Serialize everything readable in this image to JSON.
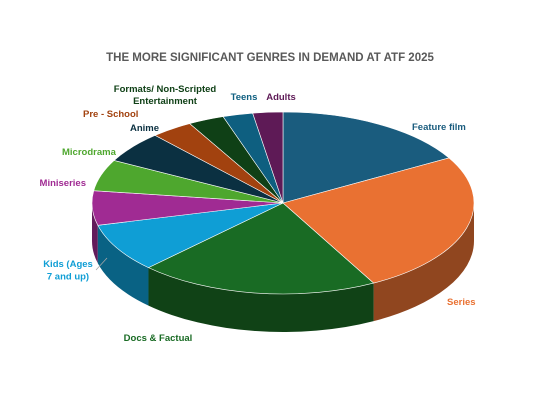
{
  "chart_data": {
    "type": "pie",
    "style": "3d",
    "title": "THE MORE SIGNIFICANT GENRES IN DEMAND AT ATF 2025",
    "legend": "none",
    "slices": [
      {
        "label": "Feature film",
        "value": 16.5,
        "color": "#1A5C7E"
      },
      {
        "label": "Series",
        "value": 25,
        "color": "#E97132"
      },
      {
        "label": "Docs & Factual",
        "value": 20,
        "color": "#196B24"
      },
      {
        "label": "Kids (Ages 7 and up)",
        "value": 8.5,
        "color": "#0F9ED5"
      },
      {
        "label": "Miniseries",
        "value": 6,
        "color": "#A02B93"
      },
      {
        "label": "Microdrama",
        "value": 5.5,
        "color": "#4EA72E"
      },
      {
        "label": "Anime",
        "value": 5.5,
        "color": "#0B3041"
      },
      {
        "label": "Pre - School",
        "value": 3.5,
        "color": "#A2420F"
      },
      {
        "label": "Formats/ Non-Scripted Entertainment",
        "value": 3,
        "color": "#0F4016"
      },
      {
        "label": "Teens",
        "value": 2.5,
        "color": "#0E5F80"
      },
      {
        "label": "Adults",
        "value": 2.5,
        "color": "#5E1A56"
      }
    ]
  }
}
